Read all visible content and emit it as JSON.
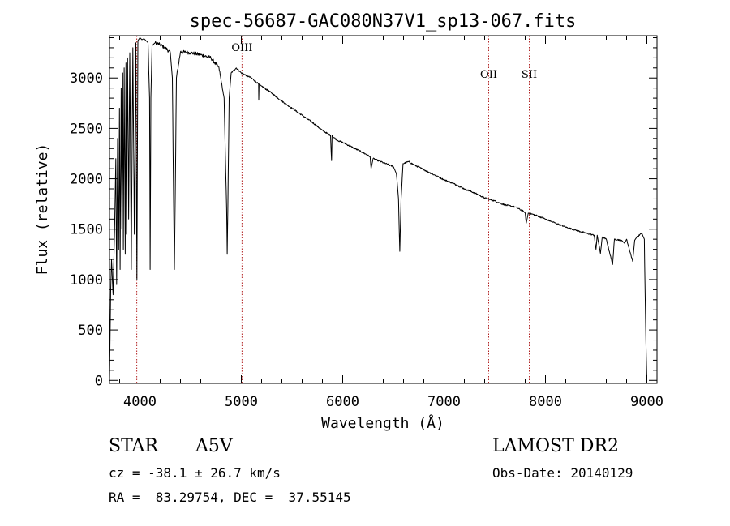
{
  "chart_data": {
    "type": "line",
    "title": "spec-56687-GAC080N37V1_sp13-067.fits",
    "xlabel": "Wavelength (Å)",
    "ylabel": "Flux (relative)",
    "xlim": [
      3700,
      9100
    ],
    "ylim": [
      -30,
      3420
    ],
    "x_ticks": [
      4000,
      5000,
      6000,
      7000,
      8000,
      9000
    ],
    "y_ticks": [
      0,
      500,
      1000,
      1500,
      2000,
      2500,
      3000
    ],
    "grid": false,
    "line_color": "#000000",
    "marker_color": "#b22222",
    "line_markers": [
      {
        "label": "",
        "x": 3969
      },
      {
        "label": "OIII",
        "x": 5007
      },
      {
        "label": "OII",
        "x": 7440
      },
      {
        "label": "SII",
        "x": 7840
      }
    ],
    "series": [
      {
        "x": [
          3700,
          3712,
          3720,
          3735,
          3750,
          3762,
          3770,
          3780,
          3790,
          3798,
          3805,
          3815,
          3822,
          3830,
          3837,
          3845,
          3855,
          3862,
          3868,
          3878,
          3889,
          3900,
          3915,
          3930,
          3945,
          3960,
          3970,
          3980,
          4000,
          4020,
          4040,
          4060,
          4080,
          4095,
          4101,
          4108,
          4120,
          4150,
          4200,
          4250,
          4300,
          4320,
          4335,
          4340,
          4345,
          4360,
          4400,
          4500,
          4600,
          4700,
          4780,
          4830,
          4855,
          4861,
          4867,
          4880,
          4900,
          4950,
          5000,
          5100,
          5170,
          5172,
          5175,
          5200,
          5300,
          5400,
          5500,
          5600,
          5700,
          5800,
          5880,
          5890,
          5895,
          5900,
          5950,
          6000,
          6100,
          6200,
          6270,
          6280,
          6300,
          6400,
          6500,
          6530,
          6550,
          6563,
          6576,
          6595,
          6650,
          6700,
          6800,
          6900,
          7000,
          7100,
          7200,
          7300,
          7400,
          7500,
          7600,
          7700,
          7780,
          7800,
          7810,
          7830,
          7900,
          8000,
          8100,
          8200,
          8300,
          8400,
          8480,
          8498,
          8510,
          8542,
          8560,
          8600,
          8662,
          8680,
          8750,
          8780,
          8800,
          8860,
          8880,
          8900,
          8950,
          8975,
          8990,
          9000
        ],
        "y": [
          0,
          900,
          1200,
          850,
          1500,
          2200,
          950,
          2400,
          1300,
          2700,
          1100,
          2900,
          1500,
          3050,
          1300,
          3100,
          1250,
          3150,
          1450,
          3200,
          1600,
          3250,
          1100,
          3300,
          1450,
          3350,
          1000,
          3370,
          3400,
          3380,
          3390,
          3370,
          3350,
          2800,
          1100,
          2800,
          3320,
          3350,
          3330,
          3300,
          3250,
          3000,
          1500,
          1100,
          1500,
          3000,
          3260,
          3250,
          3230,
          3200,
          3100,
          2800,
          1700,
          1250,
          1700,
          2800,
          3050,
          3100,
          3050,
          3000,
          2940,
          2780,
          2940,
          2920,
          2850,
          2770,
          2700,
          2630,
          2560,
          2480,
          2430,
          2180,
          2430,
          2420,
          2380,
          2360,
          2310,
          2260,
          2220,
          2100,
          2200,
          2160,
          2120,
          2050,
          1800,
          1280,
          1800,
          2150,
          2170,
          2140,
          2090,
          2040,
          1990,
          1950,
          1900,
          1860,
          1810,
          1780,
          1740,
          1720,
          1680,
          1660,
          1560,
          1660,
          1640,
          1600,
          1560,
          1520,
          1490,
          1460,
          1440,
          1300,
          1440,
          1260,
          1420,
          1400,
          1150,
          1400,
          1390,
          1360,
          1400,
          1180,
          1390,
          1420,
          1460,
          1400,
          400,
          0
        ]
      }
    ]
  },
  "info": {
    "object_class": "STAR",
    "subclass": "A5V",
    "survey": "LAMOST DR2",
    "cz": "cz = -38.1 ± 26.7 km/s",
    "obs_date": "Obs-Date: 20140129",
    "coords": "RA =  83.29754, DEC =  37.55145"
  }
}
